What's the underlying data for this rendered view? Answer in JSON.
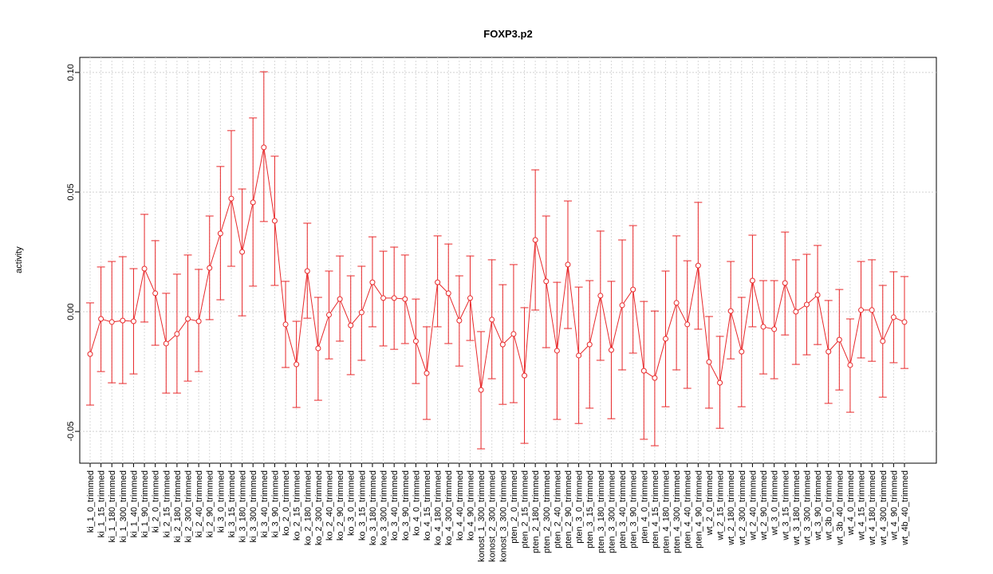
{
  "chart_data": {
    "type": "line",
    "title": "FOXP3.p2",
    "y_label": "activity",
    "categories": [
      "ki_1_0_trimmed",
      "ki_1_15_trimmed",
      "ki_1_180_trimmed",
      "ki_1_300_trimmed",
      "ki_1_40_trimmed",
      "ki_1_90_trimmed",
      "ki_2_0_trimmed",
      "ki_2_15_trimmed",
      "ki_2_180_trimmed",
      "ki_2_300_trimmed",
      "ki_2_40_trimmed",
      "ki_2_90_trimmed",
      "ki_3_0_trimmed",
      "ki_3_15_trimmed",
      "ki_3_180_trimmed",
      "ki_3_300_trimmed",
      "ki_3_40_trimmed",
      "ki_3_90_trimmed",
      "ko_2_0_trimmed",
      "ko_2_15_trimmed",
      "ko_2_180_trimmed",
      "ko_2_300_trimmed",
      "ko_2_40_trimmed",
      "ko_2_90_trimmed",
      "ko_3_0_trimmed",
      "ko_3_15_trimmed",
      "ko_3_180_trimmed",
      "ko_3_300_trimmed",
      "ko_3_40_trimmed",
      "ko_3_90_trimmed",
      "ko_4_0_trimmed",
      "ko_4_15_trimmed",
      "ko_4_180_trimmed",
      "ko_4_300_trimmed",
      "ko_4_40_trimmed",
      "ko_4_90_trimmed",
      "konost_1_300_trimmed",
      "konost_2_300_trimmed",
      "konost_3_300_trimmed",
      "pten_2_0_trimmed",
      "pten_2_15_trimmed",
      "pten_2_180_trimmed",
      "pten_2_300_trimmed",
      "pten_2_40_trimmed",
      "pten_2_90_trimmed",
      "pten_3_0_trimmed",
      "pten_3_15_trimmed",
      "pten_3_180_trimmed",
      "pten_3_300_trimmed",
      "pten_3_40_trimmed",
      "pten_3_90_trimmed",
      "pten_4_0_trimmed",
      "pten_4_15_trimmed",
      "pten_4_180_trimmed",
      "pten_4_300_trimmed",
      "pten_4_40_trimmed",
      "pten_4_90_trimmed",
      "wt_2_0_trimmed",
      "wt_2_15_trimmed",
      "wt_2_180_trimmed",
      "wt_2_300_trimmed",
      "wt_2_40_trimmed",
      "wt_2_90_trimmed",
      "wt_3_0_trimmed",
      "wt_3_15_trimmed",
      "wt_3_180_trimmed",
      "wt_3_300_trimmed",
      "wt_3_90_trimmed",
      "wt_3b_0_trimmed",
      "wt_3b_40_trimmed",
      "wt_4_0_trimmed",
      "wt_4_15_trimmed",
      "wt_4_180_trimmed",
      "wt_4_300_trimmed",
      "wt_4_90_trimmed",
      "wt_4b_40_trimmed"
    ],
    "series": [
      {
        "color": "#e8282a",
        "values": [
          -0.0177,
          -0.003,
          -0.0043,
          -0.0037,
          -0.004,
          0.018,
          0.0077,
          -0.0133,
          -0.0093,
          -0.003,
          -0.004,
          0.0183,
          0.0327,
          0.0473,
          0.025,
          0.0457,
          0.0687,
          0.038,
          -0.0053,
          -0.022,
          0.017,
          -0.0153,
          -0.0013,
          0.0053,
          -0.0057,
          -0.0003,
          0.0123,
          0.0057,
          0.0057,
          0.0053,
          -0.0123,
          -0.0257,
          0.0123,
          0.0077,
          -0.0037,
          0.0057,
          -0.0327,
          -0.0033,
          -0.0137,
          -0.0093,
          -0.0267,
          0.03,
          0.0127,
          -0.0163,
          0.0197,
          -0.0183,
          -0.0137,
          0.0067,
          -0.016,
          0.0027,
          0.0093,
          -0.0247,
          -0.0277,
          -0.0113,
          0.0037,
          -0.0053,
          0.0193,
          -0.021,
          -0.0297,
          0.0003,
          -0.0167,
          0.013,
          -0.0063,
          -0.0073,
          0.012,
          0.0,
          0.003,
          0.007,
          -0.0167,
          -0.0117,
          -0.0223,
          0.0007,
          0.0007,
          -0.0123,
          -0.0023,
          -0.0043
        ],
        "upper": [
          0.0037,
          0.0187,
          0.021,
          0.023,
          0.018,
          0.0407,
          0.0297,
          0.0077,
          0.0157,
          0.0237,
          0.0177,
          0.04,
          0.0607,
          0.0757,
          0.0513,
          0.081,
          0.1003,
          0.065,
          0.0127,
          -0.004,
          0.037,
          0.006,
          0.017,
          0.0233,
          0.015,
          0.019,
          0.0313,
          0.0253,
          0.027,
          0.0237,
          0.0053,
          -0.0063,
          0.0317,
          0.0283,
          0.015,
          0.0233,
          -0.0083,
          0.0217,
          0.0113,
          0.0197,
          0.0017,
          0.0593,
          0.04,
          0.0123,
          0.0463,
          0.0103,
          0.013,
          0.0337,
          0.0127,
          0.03,
          0.036,
          0.0043,
          0.0003,
          0.017,
          0.0317,
          0.0213,
          0.0457,
          -0.002,
          -0.0103,
          0.021,
          0.006,
          0.032,
          0.013,
          0.013,
          0.0333,
          0.0217,
          0.024,
          0.0277,
          0.0047,
          0.0093,
          -0.003,
          0.021,
          0.0217,
          0.011,
          0.0167,
          0.0147
        ],
        "lower": [
          -0.039,
          -0.025,
          -0.0297,
          -0.03,
          -0.026,
          -0.0043,
          -0.014,
          -0.034,
          -0.034,
          -0.029,
          -0.025,
          -0.0033,
          0.005,
          0.019,
          -0.0017,
          0.0107,
          0.0377,
          0.011,
          -0.0233,
          -0.04,
          -0.0027,
          -0.037,
          -0.0197,
          -0.0123,
          -0.0263,
          -0.0203,
          -0.0063,
          -0.0143,
          -0.0157,
          -0.0133,
          -0.03,
          -0.045,
          -0.0063,
          -0.0133,
          -0.0227,
          -0.012,
          -0.0573,
          -0.028,
          -0.0387,
          -0.038,
          -0.055,
          0.0007,
          -0.015,
          -0.045,
          -0.007,
          -0.0467,
          -0.0403,
          -0.0203,
          -0.0447,
          -0.0243,
          -0.0173,
          -0.0533,
          -0.056,
          -0.0397,
          -0.0243,
          -0.032,
          -0.0073,
          -0.0403,
          -0.0487,
          -0.0197,
          -0.0397,
          -0.0063,
          -0.026,
          -0.028,
          -0.0097,
          -0.022,
          -0.018,
          -0.0137,
          -0.0383,
          -0.0327,
          -0.042,
          -0.0193,
          -0.0207,
          -0.0357,
          -0.0213,
          -0.0237
        ]
      }
    ],
    "ylim": [
      -0.0633,
      0.1063
    ],
    "yticks": [
      {
        "value": -0.05,
        "label": "-0.05"
      },
      {
        "value": 0,
        "label": "0.00"
      },
      0.05,
      {
        "value": 0.1,
        "label": "0.10"
      }
    ],
    "grid": true
  }
}
